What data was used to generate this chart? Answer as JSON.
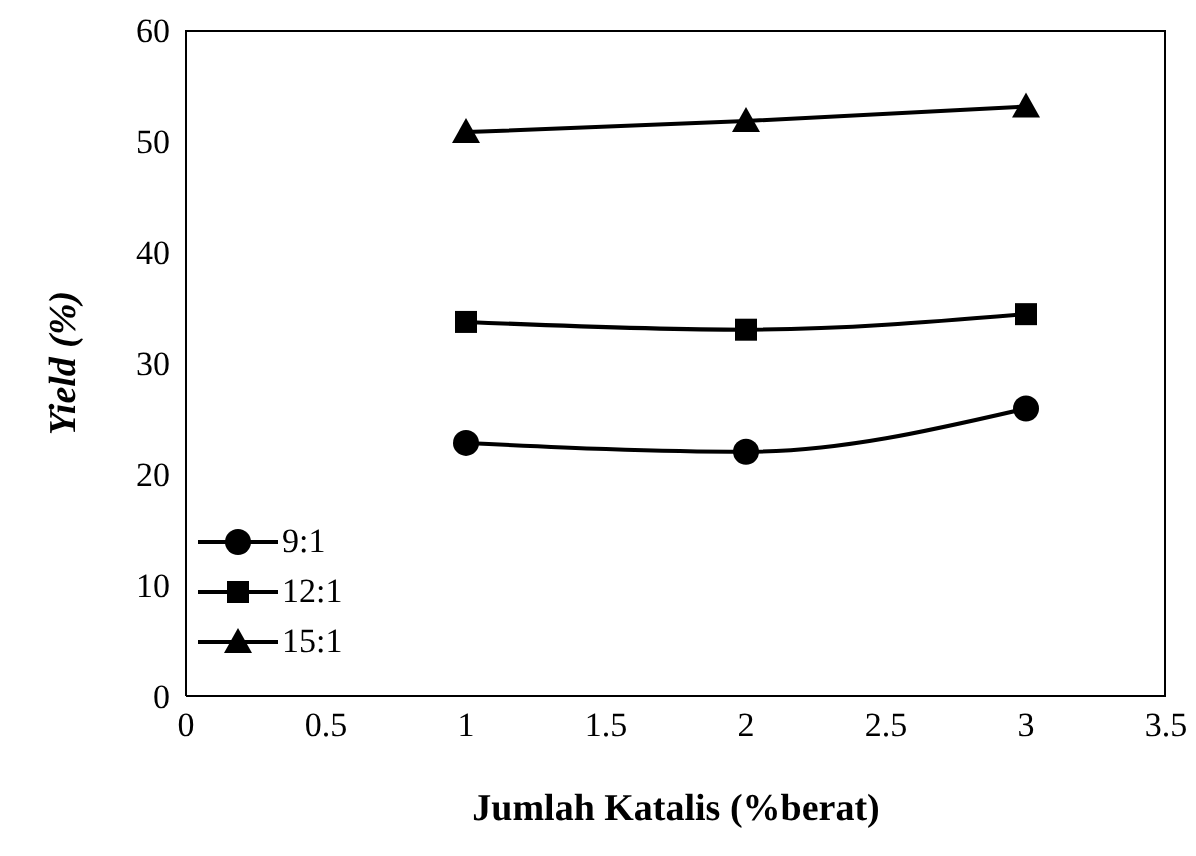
{
  "chart_data": {
    "type": "line",
    "xlabel": "Jumlah Katalis (%berat)",
    "ylabel": "Yield (%)",
    "x": [
      1,
      2,
      3
    ],
    "series": [
      {
        "name": "9:1",
        "color": "#000000",
        "marker": "circle",
        "values": [
          22.8,
          22.0,
          25.9
        ]
      },
      {
        "name": "12:1",
        "color": "#000000",
        "marker": "square",
        "values": [
          33.7,
          33.0,
          34.4
        ]
      },
      {
        "name": "15:1",
        "color": "#000000",
        "marker": "triangle",
        "values": [
          50.8,
          51.8,
          53.1
        ]
      }
    ],
    "xlim": [
      0,
      3.5
    ],
    "xticks": [
      0,
      0.5,
      1,
      1.5,
      2,
      2.5,
      3,
      3.5
    ],
    "ylim": [
      0,
      60
    ],
    "yticks": [
      0,
      10,
      20,
      30,
      40,
      50,
      60
    ],
    "grid": false,
    "legend": "bottom left",
    "line_style": "solid"
  }
}
